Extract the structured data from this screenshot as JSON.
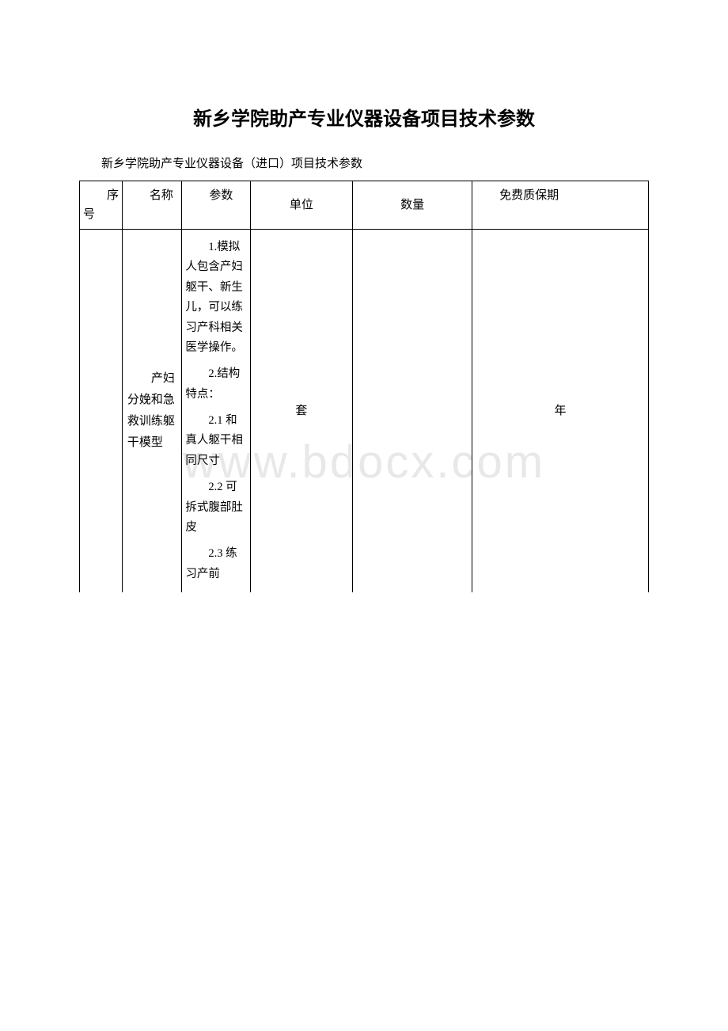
{
  "title": "新乡学院助产专业仪器设备项目技术参数",
  "subtitle": "新乡学院助产专业仪器设备（进口）项目技术参数",
  "watermark": "www.bdocx.com",
  "table": {
    "headers": {
      "seq": "序号",
      "name": "名称",
      "param": "参数",
      "unit": "单位",
      "qty": "数量",
      "warranty": "免费质保期"
    },
    "row": {
      "seq": "",
      "name": "产妇分娩和急救训练躯干模型",
      "param_p1": "1.模拟人包含产妇躯干、新生儿，可以练习产科相关医学操作。",
      "param_p2": "2.结构特点：",
      "param_p3": "2.1 和真人躯干相同尺寸",
      "param_p4": "2.2 可拆式腹部肚皮",
      "param_p5": "2.3 练习产前",
      "unit": "套",
      "qty": "",
      "warranty": "年"
    }
  }
}
